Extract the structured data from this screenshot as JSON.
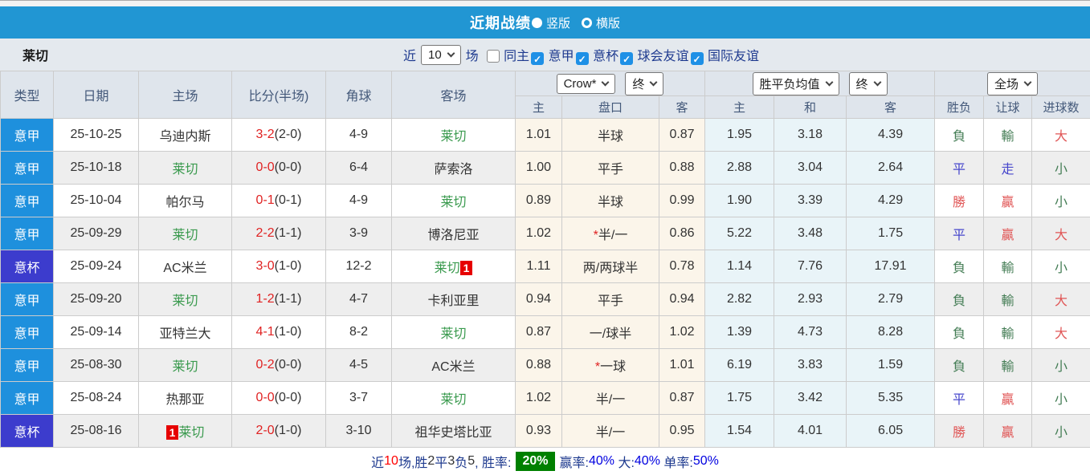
{
  "title_bar": {
    "title": "近期战绩",
    "options": [
      {
        "label": "竖版",
        "selected": true
      },
      {
        "label": "横版",
        "selected": false
      }
    ]
  },
  "filter_bar": {
    "team": "莱切",
    "recent_label": "近",
    "recent_value": "10",
    "matches_label": "场",
    "checkboxes": [
      {
        "label": "同主",
        "checked": false
      },
      {
        "label": "意甲",
        "checked": true
      },
      {
        "label": "意杯",
        "checked": true
      },
      {
        "label": "球会友谊",
        "checked": true
      },
      {
        "label": "国际友谊",
        "checked": true
      }
    ]
  },
  "table": {
    "main_headers": [
      "类型",
      "日期",
      "主场",
      "比分(半场)",
      "角球",
      "客场"
    ],
    "dropdowns": {
      "bookmaker": "Crow*",
      "bookmaker_period": "终",
      "average": "胜平负均值",
      "average_period": "终",
      "scope": "全场"
    },
    "sub_headers": [
      "主",
      "盘口",
      "客",
      "主",
      "和",
      "客",
      "胜负",
      "让球",
      "进球数"
    ],
    "rows": [
      {
        "type": "意甲",
        "type_key": "league",
        "date": "25-10-25",
        "home": {
          "name": "乌迪内斯",
          "green": false,
          "badge": null
        },
        "score": {
          "ft": "3-2",
          "ht": "(2-0)"
        },
        "corners": "4-9",
        "away": {
          "name": "莱切",
          "green": true,
          "badge": null
        },
        "ah": {
          "home": "1.01",
          "star": false,
          "line": "半球",
          "away": "0.87"
        },
        "odds": {
          "home": "1.95",
          "draw": "3.18",
          "away": "4.39"
        },
        "result": {
          "text": "負",
          "color": "green"
        },
        "handicap_result": {
          "text": "輸",
          "color": "green"
        },
        "goals": {
          "text": "大",
          "color": "red"
        }
      },
      {
        "type": "意甲",
        "type_key": "league",
        "date": "25-10-18",
        "home": {
          "name": "莱切",
          "green": true,
          "badge": null
        },
        "score": {
          "ft": "0-0",
          "ht": "(0-0)"
        },
        "corners": "6-4",
        "away": {
          "name": "萨索洛",
          "green": false,
          "badge": null
        },
        "ah": {
          "home": "1.00",
          "star": false,
          "line": "平手",
          "away": "0.88"
        },
        "odds": {
          "home": "2.88",
          "draw": "3.04",
          "away": "2.64"
        },
        "result": {
          "text": "平",
          "color": "blue"
        },
        "handicap_result": {
          "text": "走",
          "color": "blue"
        },
        "goals": {
          "text": "小",
          "color": "green"
        }
      },
      {
        "type": "意甲",
        "type_key": "league",
        "date": "25-10-04",
        "home": {
          "name": "帕尔马",
          "green": false,
          "badge": null
        },
        "score": {
          "ft": "0-1",
          "ht": "(0-1)"
        },
        "corners": "4-9",
        "away": {
          "name": "莱切",
          "green": true,
          "badge": null
        },
        "ah": {
          "home": "0.89",
          "star": false,
          "line": "半球",
          "away": "0.99"
        },
        "odds": {
          "home": "1.90",
          "draw": "3.39",
          "away": "4.29"
        },
        "result": {
          "text": "勝",
          "color": "red"
        },
        "handicap_result": {
          "text": "贏",
          "color": "red"
        },
        "goals": {
          "text": "小",
          "color": "green"
        }
      },
      {
        "type": "意甲",
        "type_key": "league",
        "date": "25-09-29",
        "home": {
          "name": "莱切",
          "green": true,
          "badge": null
        },
        "score": {
          "ft": "2-2",
          "ht": "(1-1)"
        },
        "corners": "3-9",
        "away": {
          "name": "博洛尼亚",
          "green": false,
          "badge": null
        },
        "ah": {
          "home": "1.02",
          "star": true,
          "line": "半/一",
          "away": "0.86"
        },
        "odds": {
          "home": "5.22",
          "draw": "3.48",
          "away": "1.75"
        },
        "result": {
          "text": "平",
          "color": "blue"
        },
        "handicap_result": {
          "text": "贏",
          "color": "red"
        },
        "goals": {
          "text": "大",
          "color": "red"
        }
      },
      {
        "type": "意杯",
        "type_key": "cup",
        "date": "25-09-24",
        "home": {
          "name": "AC米兰",
          "green": false,
          "badge": null
        },
        "score": {
          "ft": "3-0",
          "ht": "(1-0)"
        },
        "corners": "12-2",
        "away": {
          "name": "莱切",
          "green": true,
          "badge": {
            "text": "1",
            "pos": "after"
          }
        },
        "ah": {
          "home": "1.11",
          "star": false,
          "line": "两/两球半",
          "away": "0.78"
        },
        "odds": {
          "home": "1.14",
          "draw": "7.76",
          "away": "17.91"
        },
        "result": {
          "text": "負",
          "color": "green"
        },
        "handicap_result": {
          "text": "輸",
          "color": "green"
        },
        "goals": {
          "text": "小",
          "color": "green"
        }
      },
      {
        "type": "意甲",
        "type_key": "league",
        "date": "25-09-20",
        "home": {
          "name": "莱切",
          "green": true,
          "badge": null
        },
        "score": {
          "ft": "1-2",
          "ht": "(1-1)"
        },
        "corners": "4-7",
        "away": {
          "name": "卡利亚里",
          "green": false,
          "badge": null
        },
        "ah": {
          "home": "0.94",
          "star": false,
          "line": "平手",
          "away": "0.94"
        },
        "odds": {
          "home": "2.82",
          "draw": "2.93",
          "away": "2.79"
        },
        "result": {
          "text": "負",
          "color": "green"
        },
        "handicap_result": {
          "text": "輸",
          "color": "green"
        },
        "goals": {
          "text": "大",
          "color": "red"
        }
      },
      {
        "type": "意甲",
        "type_key": "league",
        "date": "25-09-14",
        "home": {
          "name": "亚特兰大",
          "green": false,
          "badge": null
        },
        "score": {
          "ft": "4-1",
          "ht": "(1-0)"
        },
        "corners": "8-2",
        "away": {
          "name": "莱切",
          "green": true,
          "badge": null
        },
        "ah": {
          "home": "0.87",
          "star": false,
          "line": "一/球半",
          "away": "1.02"
        },
        "odds": {
          "home": "1.39",
          "draw": "4.73",
          "away": "8.28"
        },
        "result": {
          "text": "負",
          "color": "green"
        },
        "handicap_result": {
          "text": "輸",
          "color": "green"
        },
        "goals": {
          "text": "大",
          "color": "red"
        }
      },
      {
        "type": "意甲",
        "type_key": "league",
        "date": "25-08-30",
        "home": {
          "name": "莱切",
          "green": true,
          "badge": null
        },
        "score": {
          "ft": "0-2",
          "ht": "(0-0)"
        },
        "corners": "4-5",
        "away": {
          "name": "AC米兰",
          "green": false,
          "badge": null
        },
        "ah": {
          "home": "0.88",
          "star": true,
          "line": "一球",
          "away": "1.01"
        },
        "odds": {
          "home": "6.19",
          "draw": "3.83",
          "away": "1.59"
        },
        "result": {
          "text": "負",
          "color": "green"
        },
        "handicap_result": {
          "text": "輸",
          "color": "green"
        },
        "goals": {
          "text": "小",
          "color": "green"
        }
      },
      {
        "type": "意甲",
        "type_key": "league",
        "date": "25-08-24",
        "home": {
          "name": "热那亚",
          "green": false,
          "badge": null
        },
        "score": {
          "ft": "0-0",
          "ht": "(0-0)"
        },
        "corners": "3-7",
        "away": {
          "name": "莱切",
          "green": true,
          "badge": null
        },
        "ah": {
          "home": "1.02",
          "star": false,
          "line": "半/一",
          "away": "0.87"
        },
        "odds": {
          "home": "1.75",
          "draw": "3.42",
          "away": "5.35"
        },
        "result": {
          "text": "平",
          "color": "blue"
        },
        "handicap_result": {
          "text": "贏",
          "color": "red"
        },
        "goals": {
          "text": "小",
          "color": "green"
        }
      },
      {
        "type": "意杯",
        "type_key": "cup",
        "date": "25-08-16",
        "home": {
          "name": "莱切",
          "green": true,
          "badge": {
            "text": "1",
            "pos": "before"
          }
        },
        "score": {
          "ft": "2-0",
          "ht": "(1-0)"
        },
        "corners": "3-10",
        "away": {
          "name": "祖华史塔比亚",
          "green": false,
          "badge": null
        },
        "ah": {
          "home": "0.93",
          "star": false,
          "line": "半/一",
          "away": "0.95"
        },
        "odds": {
          "home": "1.54",
          "draw": "4.01",
          "away": "6.05"
        },
        "result": {
          "text": "勝",
          "color": "red"
        },
        "handicap_result": {
          "text": "贏",
          "color": "red"
        },
        "goals": {
          "text": "小",
          "color": "green"
        }
      }
    ]
  },
  "summary": {
    "prefix": "近",
    "recent_count": "10",
    "seg_matches": "场,胜",
    "wins": "2",
    "seg_draw": "平",
    "draws": "3",
    "seg_loss": "负",
    "losses": "5",
    "seg_rate": ", 胜率:",
    "win_rate": "20%",
    "label_win": "赢率:",
    "win_pct": "40%",
    "label_big": "大:",
    "big_pct": "40%",
    "label_single": "单率:",
    "single_pct": "50%"
  },
  "colors": {
    "header_blue": "#2196d3",
    "league_badge_blue": "#1e90dd",
    "cup_badge_purple": "#3c3ccd",
    "team_green": "#3a9a4e",
    "score_red": "#e02222",
    "result_red": "#e05555",
    "result_green": "#447d55",
    "result_blue": "#4646cc",
    "rate_badge_green": "#008000",
    "summary_blue": "#0000e0",
    "checkbox_blue": "#1e90e6",
    "handicap_col_bg": "#fbf5ea",
    "odds_col_bg": "#e9f4f8"
  }
}
